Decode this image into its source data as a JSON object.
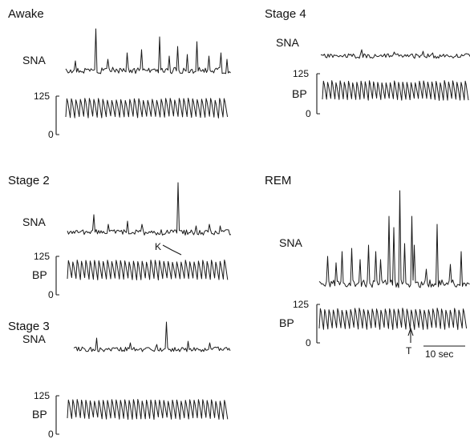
{
  "panels": [
    {
      "id": "awake",
      "title": "Awake",
      "sna_label": "SNA",
      "bp_label": "",
      "bp_ticks": [
        "125",
        "0"
      ]
    },
    {
      "id": "stage4",
      "title": "Stage 4",
      "sna_label": "SNA",
      "bp_label": "BP",
      "bp_ticks": [
        "125",
        "0"
      ]
    },
    {
      "id": "stage2",
      "title": "Stage 2",
      "sna_label": "SNA",
      "bp_label": "BP",
      "bp_ticks": [
        "125",
        "0"
      ],
      "annotation": "K"
    },
    {
      "id": "rem",
      "title": "REM",
      "sna_label": "SNA",
      "bp_label": "BP",
      "bp_ticks": [
        "125",
        "0"
      ],
      "marker": "T",
      "scale_bar": "10 sec"
    },
    {
      "id": "stage3",
      "title": "Stage 3",
      "sna_label": "SNA",
      "bp_label": "BP",
      "bp_ticks": [
        "125",
        "0"
      ]
    }
  ]
}
